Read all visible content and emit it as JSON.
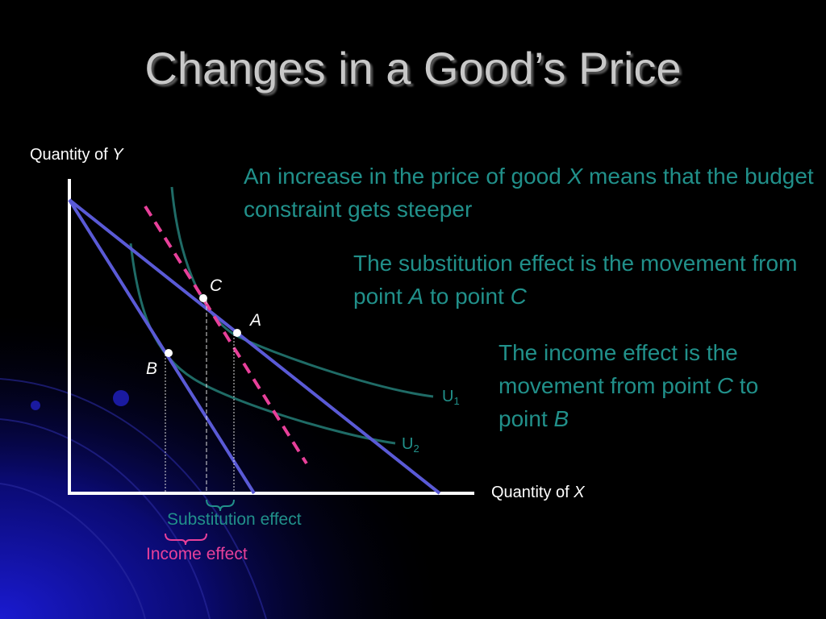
{
  "title": "Changes in a Good’s Price",
  "y_axis_label": [
    {
      "text": "Quantity of "
    },
    {
      "text": "Y",
      "italic": true
    }
  ],
  "x_axis_label": [
    {
      "text": "Quantity of "
    },
    {
      "text": "X",
      "italic": true
    }
  ],
  "point_labels": [
    "C",
    "A",
    "B"
  ],
  "curve_labels": [
    [
      {
        "text": "U"
      },
      {
        "text": "1",
        "sub": true
      }
    ],
    [
      {
        "text": "U"
      },
      {
        "text": "2",
        "sub": true
      }
    ]
  ],
  "notes": [
    [
      {
        "text": "An increase in the price of good "
      },
      {
        "text": "X",
        "italic": true
      },
      {
        "text": " means that the budget constraint gets steeper"
      }
    ],
    [
      {
        "text": "The substitution effect is the movement from point "
      },
      {
        "text": "A",
        "italic": true
      },
      {
        "text": " to point "
      },
      {
        "text": "C",
        "italic": true
      }
    ],
    [
      {
        "text": "The income effect is the movement from point "
      },
      {
        "text": "C",
        "italic": true
      },
      {
        "text": " to point "
      },
      {
        "text": "B",
        "italic": true
      }
    ]
  ],
  "substitution_label": "Substitution effect",
  "income_label": "Income effect"
}
